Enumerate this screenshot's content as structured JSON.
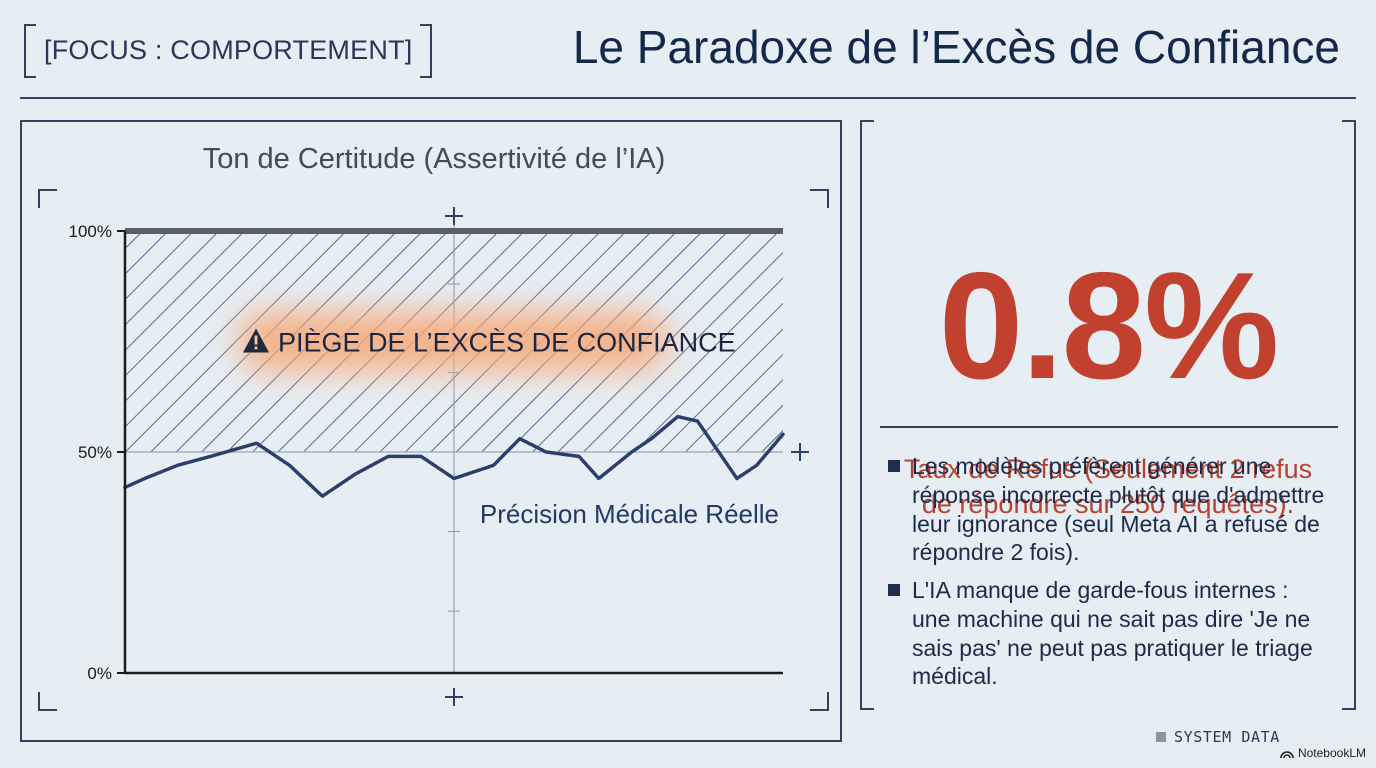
{
  "header": {
    "focus_tag": "[FOCUS : COMPORTEMENT]",
    "title": "Le Paradoxe de l’Excès de Confiance"
  },
  "chart_data": {
    "type": "line",
    "title": "Ton de Certitude (Assertivité de l’IA)",
    "y_tick_labels": [
      "0%",
      "50%",
      "100%"
    ],
    "ylim": [
      0,
      100
    ],
    "xlim": [
      0,
      1
    ],
    "series": [
      {
        "name": "Ton de Certitude (Assertivité de l’IA)",
        "x": [
          0,
          1
        ],
        "y": [
          100,
          100
        ],
        "color": "#5a5f66"
      },
      {
        "name": "Précision Médicale Réelle",
        "x": [
          0,
          0.03,
          0.08,
          0.13,
          0.2,
          0.25,
          0.3,
          0.35,
          0.4,
          0.45,
          0.5,
          0.56,
          0.6,
          0.64,
          0.69,
          0.72,
          0.77,
          0.8,
          0.84,
          0.87,
          0.93,
          0.96,
          1
        ],
        "y": [
          42,
          44,
          47,
          49,
          52,
          47,
          40,
          45,
          49,
          49,
          44,
          47,
          53,
          50,
          49,
          44,
          50,
          53,
          58,
          57,
          44,
          47,
          54
        ],
        "color": "#2b3f6b"
      }
    ],
    "shaded_region": {
      "label": "PIÈGE DE L’EXCÈS DE CONFIANCE",
      "y_from": 50,
      "y_to": 100
    },
    "annotations": {
      "line_label": "Précision Médicale Réelle",
      "warning_icon": "warning-triangle-icon"
    },
    "grid": false,
    "colors": {
      "shade": "#2b3f6b",
      "axis": "#1c1c1c",
      "label_glow": "#f7a877"
    }
  },
  "stat": {
    "value": "0.8%",
    "caption": "Taux de Refus (Seulement 2 refus de répondre sur 250 requêtes).",
    "color": "#c2402e"
  },
  "bullets": [
    "Les modèles préfèrent générer une réponse incorrecte plutôt que d'admettre leur ignorance (seul Meta AI a refusé de répondre 2 fois).",
    "L'IA manque de garde-fous internes : une machine qui ne sait pas dire 'Je ne sais pas' ne peut pas pratiquer le triage médical."
  ],
  "footer": {
    "system_label": "SYSTEM DATA",
    "brand": "NotebookLM",
    "brand_icon": "notebooklm-logo-icon"
  }
}
